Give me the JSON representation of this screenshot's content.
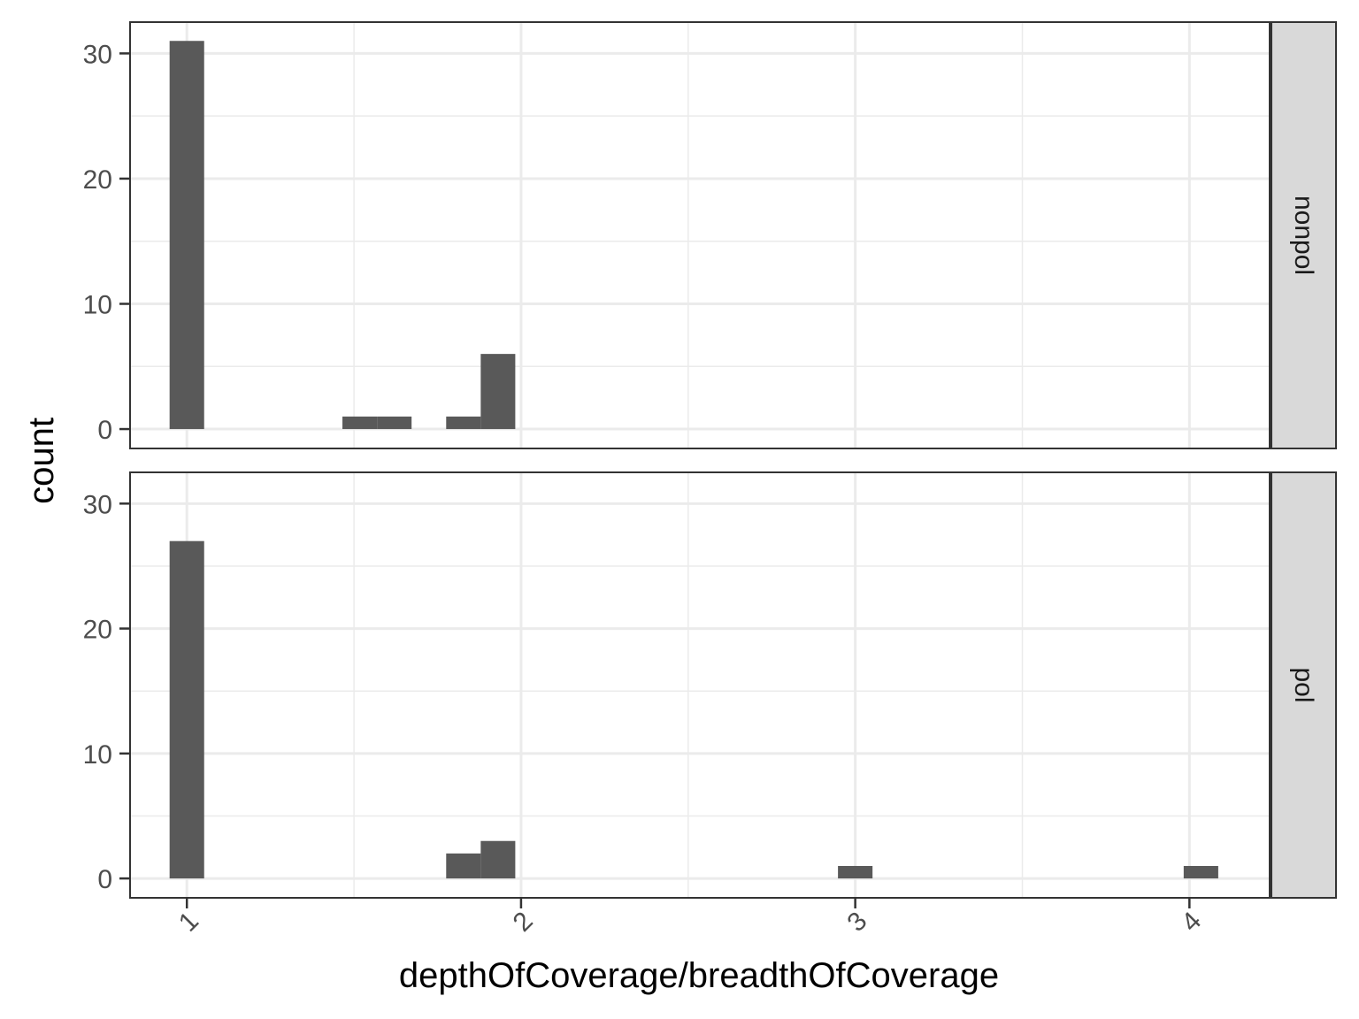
{
  "chart_data": {
    "type": "bar",
    "xlabel": "depthOfCoverage/breadthOfCoverage",
    "ylabel": "count",
    "xlim": [
      0.83,
      4.24
    ],
    "ylim": [
      -1.55,
      32.5
    ],
    "x_ticks": [
      1,
      2,
      3,
      4
    ],
    "x_tick_labels": [
      "1",
      "2",
      "3",
      "4"
    ],
    "y_ticks": [
      0,
      10,
      20,
      30
    ],
    "y_tick_labels": [
      "0",
      "10",
      "20",
      "30"
    ],
    "bin_width": 0.1034,
    "grid": true,
    "bar_color": "#595959",
    "panels": [
      {
        "label": "nonpol",
        "bars": [
          {
            "x": 1.0,
            "count": 31
          },
          {
            "x": 1.5172,
            "count": 1
          },
          {
            "x": 1.6207,
            "count": 1
          },
          {
            "x": 1.8276,
            "count": 1
          },
          {
            "x": 1.931,
            "count": 6
          }
        ]
      },
      {
        "label": "pol",
        "bars": [
          {
            "x": 1.0,
            "count": 27
          },
          {
            "x": 1.8276,
            "count": 2
          },
          {
            "x": 1.931,
            "count": 3
          },
          {
            "x": 3.0,
            "count": 1
          },
          {
            "x": 4.0345,
            "count": 1
          }
        ]
      }
    ]
  }
}
